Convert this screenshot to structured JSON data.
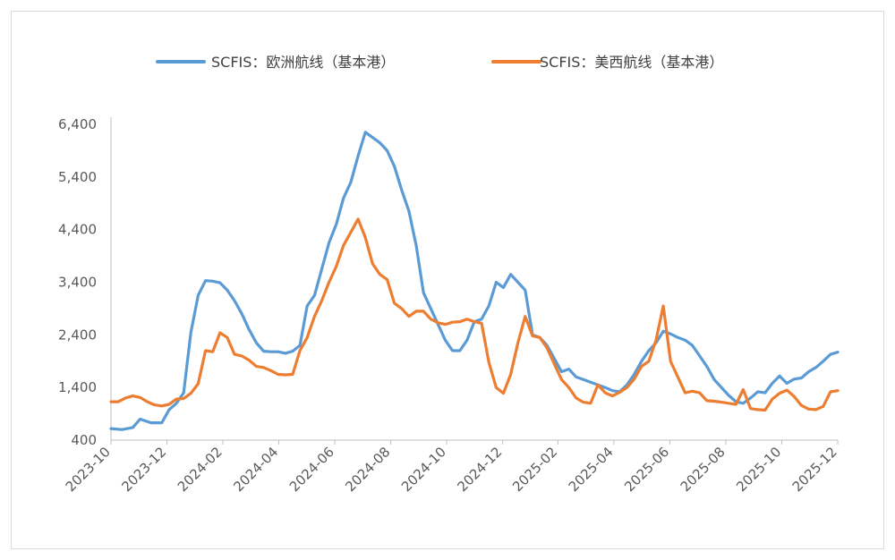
{
  "chart_data": {
    "type": "line",
    "title": "",
    "xlabel": "",
    "ylabel": "",
    "ylim": [
      400,
      6400
    ],
    "y_ticks": [
      "400",
      "1,400",
      "2,400",
      "3,400",
      "4,400",
      "5,400",
      "6,400"
    ],
    "y_tick_values": [
      400,
      1400,
      2400,
      3400,
      4400,
      5400,
      6400
    ],
    "x_ticks": [
      "2023-10",
      "2023-12",
      "2024-02",
      "2024-04",
      "2024-06",
      "2024-08",
      "2024-10",
      "2024-12",
      "2025-02",
      "2025-04",
      "2025-06",
      "2025-08",
      "2025-10",
      "2025-12"
    ],
    "legend_position": "top",
    "grid": false,
    "series": [
      {
        "name": "SCFIS：欧洲航线（基本港）",
        "color": "#5b9bd5",
        "points": [
          [
            0,
            620
          ],
          [
            1.5,
            600
          ],
          [
            3,
            640
          ],
          [
            4,
            800
          ],
          [
            5.5,
            730
          ],
          [
            7,
            730
          ],
          [
            8,
            980
          ],
          [
            9,
            1100
          ],
          [
            10,
            1300
          ],
          [
            11,
            2450
          ],
          [
            12,
            3150
          ],
          [
            13,
            3430
          ],
          [
            14,
            3420
          ],
          [
            15,
            3390
          ],
          [
            16,
            3250
          ],
          [
            17,
            3050
          ],
          [
            18,
            2800
          ],
          [
            19,
            2500
          ],
          [
            20,
            2250
          ],
          [
            21,
            2090
          ],
          [
            22,
            2080
          ],
          [
            23,
            2080
          ],
          [
            24,
            2050
          ],
          [
            25,
            2090
          ],
          [
            26,
            2200
          ],
          [
            27,
            2950
          ],
          [
            28,
            3150
          ],
          [
            29,
            3650
          ],
          [
            30,
            4150
          ],
          [
            31,
            4500
          ],
          [
            32,
            5000
          ],
          [
            33,
            5300
          ],
          [
            34,
            5800
          ],
          [
            35,
            6250
          ],
          [
            36,
            6150
          ],
          [
            37,
            6050
          ],
          [
            38,
            5900
          ],
          [
            39,
            5600
          ],
          [
            40,
            5150
          ],
          [
            41,
            4750
          ],
          [
            42,
            4100
          ],
          [
            43,
            3200
          ],
          [
            44,
            2900
          ],
          [
            45,
            2600
          ],
          [
            46,
            2300
          ],
          [
            47,
            2100
          ],
          [
            48,
            2100
          ],
          [
            49,
            2300
          ],
          [
            50,
            2650
          ],
          [
            51,
            2700
          ],
          [
            52,
            2950
          ],
          [
            53,
            3400
          ],
          [
            54,
            3300
          ],
          [
            55,
            3550
          ],
          [
            56,
            3400
          ],
          [
            57,
            3250
          ],
          [
            58,
            2400
          ],
          [
            59,
            2350
          ],
          [
            60,
            2200
          ],
          [
            61,
            1950
          ],
          [
            62,
            1700
          ],
          [
            63,
            1750
          ],
          [
            64,
            1600
          ],
          [
            65,
            1550
          ],
          [
            66,
            1500
          ],
          [
            67,
            1450
          ],
          [
            68,
            1400
          ],
          [
            69,
            1340
          ],
          [
            70,
            1320
          ],
          [
            71,
            1450
          ],
          [
            72,
            1650
          ],
          [
            73,
            1900
          ],
          [
            74,
            2100
          ],
          [
            75,
            2250
          ],
          [
            76,
            2470
          ],
          [
            77,
            2420
          ],
          [
            78,
            2350
          ],
          [
            79,
            2300
          ],
          [
            80,
            2200
          ],
          [
            81,
            2000
          ],
          [
            82,
            1800
          ],
          [
            83,
            1550
          ],
          [
            84,
            1400
          ],
          [
            85,
            1250
          ],
          [
            86,
            1130
          ],
          [
            87,
            1100
          ],
          [
            88,
            1200
          ],
          [
            89,
            1320
          ],
          [
            90,
            1300
          ],
          [
            91,
            1480
          ],
          [
            92,
            1620
          ],
          [
            93,
            1480
          ],
          [
            94,
            1560
          ],
          [
            95,
            1580
          ],
          [
            96,
            1700
          ],
          [
            97,
            1780
          ],
          [
            98,
            1900
          ],
          [
            99,
            2030
          ],
          [
            100,
            2070
          ]
        ]
      },
      {
        "name": "SCFIS：美西航线（基本港）",
        "color": "#ed7d31",
        "points": [
          [
            0,
            1130
          ],
          [
            1,
            1130
          ],
          [
            2,
            1200
          ],
          [
            3,
            1240
          ],
          [
            4,
            1210
          ],
          [
            5,
            1130
          ],
          [
            6,
            1070
          ],
          [
            7,
            1050
          ],
          [
            8,
            1080
          ],
          [
            9,
            1180
          ],
          [
            10,
            1190
          ],
          [
            11,
            1290
          ],
          [
            12,
            1470
          ],
          [
            13,
            2100
          ],
          [
            14,
            2080
          ],
          [
            15,
            2440
          ],
          [
            16,
            2350
          ],
          [
            17,
            2030
          ],
          [
            18,
            2000
          ],
          [
            19,
            1920
          ],
          [
            20,
            1800
          ],
          [
            21,
            1780
          ],
          [
            22,
            1720
          ],
          [
            23,
            1650
          ],
          [
            24,
            1640
          ],
          [
            25,
            1650
          ],
          [
            26,
            2100
          ],
          [
            27,
            2350
          ],
          [
            28,
            2750
          ],
          [
            29,
            3050
          ],
          [
            30,
            3400
          ],
          [
            31,
            3700
          ],
          [
            32,
            4100
          ],
          [
            33,
            4350
          ],
          [
            34,
            4600
          ],
          [
            35,
            4250
          ],
          [
            36,
            3750
          ],
          [
            37,
            3550
          ],
          [
            38,
            3450
          ],
          [
            39,
            3000
          ],
          [
            40,
            2900
          ],
          [
            41,
            2750
          ],
          [
            42,
            2850
          ],
          [
            43,
            2850
          ],
          [
            44,
            2700
          ],
          [
            45,
            2630
          ],
          [
            46,
            2600
          ],
          [
            47,
            2640
          ],
          [
            48,
            2650
          ],
          [
            49,
            2700
          ],
          [
            50,
            2650
          ],
          [
            51,
            2620
          ],
          [
            52,
            1880
          ],
          [
            53,
            1400
          ],
          [
            54,
            1290
          ],
          [
            55,
            1650
          ],
          [
            56,
            2250
          ],
          [
            57,
            2750
          ],
          [
            58,
            2380
          ],
          [
            59,
            2350
          ],
          [
            60,
            2150
          ],
          [
            61,
            1850
          ],
          [
            62,
            1550
          ],
          [
            63,
            1400
          ],
          [
            64,
            1200
          ],
          [
            65,
            1120
          ],
          [
            66,
            1100
          ],
          [
            67,
            1450
          ],
          [
            68,
            1300
          ],
          [
            69,
            1240
          ],
          [
            70,
            1310
          ],
          [
            71,
            1400
          ],
          [
            72,
            1560
          ],
          [
            73,
            1800
          ],
          [
            74,
            1900
          ],
          [
            75,
            2300
          ],
          [
            76,
            2950
          ],
          [
            77,
            1900
          ],
          [
            78,
            1600
          ],
          [
            79,
            1300
          ],
          [
            80,
            1330
          ],
          [
            81,
            1300
          ],
          [
            82,
            1150
          ],
          [
            83,
            1140
          ],
          [
            84,
            1120
          ],
          [
            85,
            1100
          ],
          [
            86,
            1080
          ],
          [
            87,
            1360
          ],
          [
            88,
            1000
          ],
          [
            89,
            980
          ],
          [
            90,
            970
          ],
          [
            91,
            1180
          ],
          [
            92,
            1290
          ],
          [
            93,
            1350
          ],
          [
            94,
            1230
          ],
          [
            95,
            1060
          ],
          [
            96,
            990
          ],
          [
            97,
            980
          ],
          [
            98,
            1040
          ],
          [
            99,
            1320
          ],
          [
            100,
            1340
          ]
        ]
      }
    ],
    "x_range": [
      0,
      100
    ],
    "x_tick_positions": [
      0,
      7.7,
      15.4,
      23.1,
      30.8,
      38.5,
      46.2,
      53.9,
      61.5,
      69.2,
      76.9,
      84.6,
      92.3,
      100
    ],
    "x_axis_note_months_from_2023_10": [
      0,
      2,
      4,
      6,
      8,
      10,
      12,
      14,
      16,
      18,
      20,
      22,
      24,
      26
    ]
  }
}
